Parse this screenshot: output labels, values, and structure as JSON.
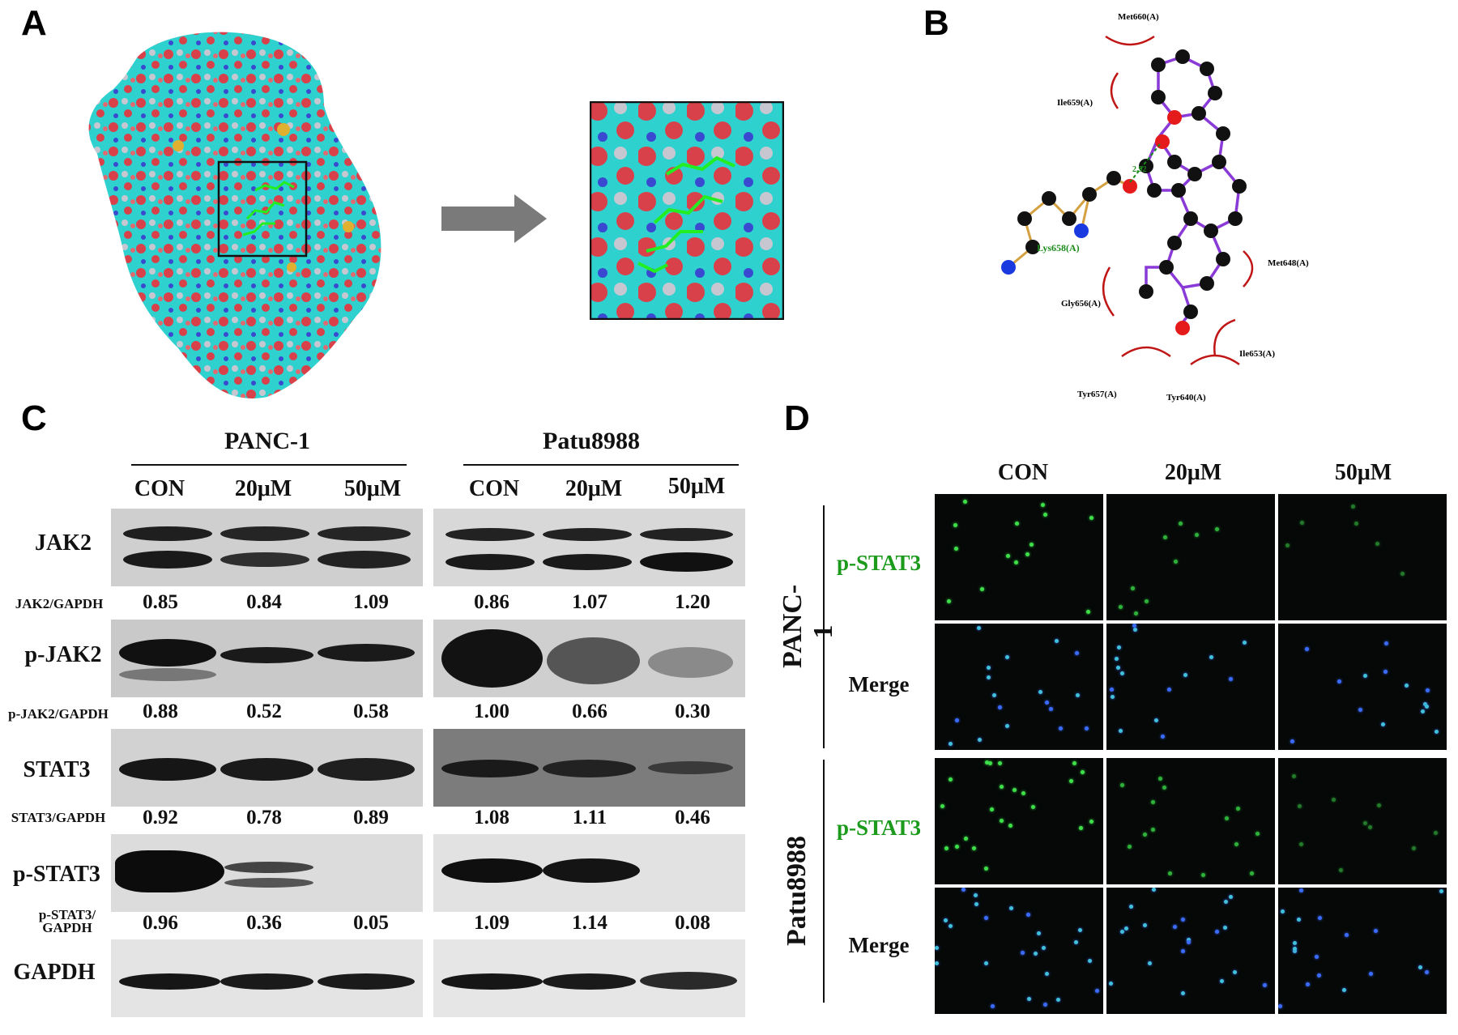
{
  "panels": {
    "a": "A",
    "b": "B",
    "c": "C",
    "d": "D"
  },
  "panelB": {
    "residues": [
      "Met660(A)",
      "Ile659(A)",
      "Met648(A)",
      "Gly656(A)",
      "Ile653(A)",
      "Tyr657(A)",
      "Tyr640(A)"
    ],
    "hbond_residue": "Lys658(A)",
    "hbond_distance": "2.92"
  },
  "panelC": {
    "cell_lines": [
      "PANC-1",
      "Patu8988"
    ],
    "conditions": [
      "CON",
      "20μM",
      "50μM"
    ],
    "rows": [
      {
        "protein": "JAK2",
        "ratio_label": "JAK2/GAPDH",
        "panc1": [
          "0.85",
          "0.84",
          "1.09"
        ],
        "patu": [
          "0.86",
          "1.07",
          "1.20"
        ]
      },
      {
        "protein": "p-JAK2",
        "ratio_label": "p-JAK2/GAPDH",
        "panc1": [
          "0.88",
          "0.52",
          "0.58"
        ],
        "patu": [
          "1.00",
          "0.66",
          "0.30"
        ]
      },
      {
        "protein": "STAT3",
        "ratio_label": "STAT3/GAPDH",
        "panc1": [
          "0.92",
          "0.78",
          "0.89"
        ],
        "patu": [
          "1.08",
          "1.11",
          "0.46"
        ]
      },
      {
        "protein": "p-STAT3",
        "ratio_label_line1": "p-STAT3/",
        "ratio_label_line2": "GAPDH",
        "panc1": [
          "0.96",
          "0.36",
          "0.05"
        ],
        "patu": [
          "1.09",
          "1.14",
          "0.08"
        ]
      }
    ],
    "loading_control": "GAPDH"
  },
  "panelD": {
    "conditions": [
      "CON",
      "20μM",
      "50μM"
    ],
    "cell_lines": [
      "PANC-1",
      "Patu8988"
    ],
    "stain_labels": [
      "p-STAT3",
      "Merge"
    ]
  }
}
